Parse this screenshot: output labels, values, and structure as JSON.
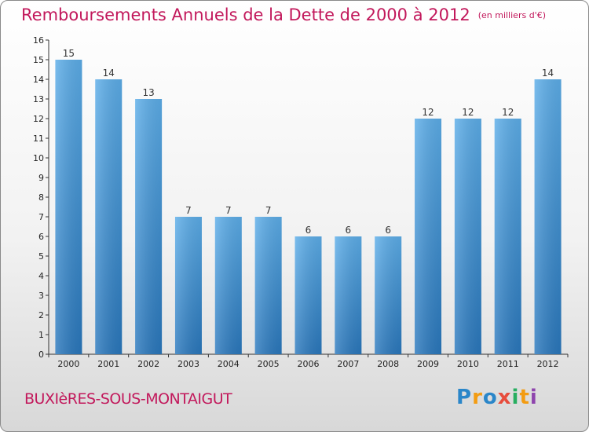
{
  "header": {
    "title": "Remboursements Annuels de la Dette de 2000 à 2012",
    "unit": "(en milliers d'€)"
  },
  "footer": {
    "city": "BUXIèRES-SOUS-MONTAIGUT",
    "logo": "Proxiti"
  },
  "chart_data": {
    "type": "bar",
    "title": "Remboursements Annuels de la Dette de 2000 à 2012",
    "subtitle": "(en milliers d'€)",
    "xlabel": "",
    "ylabel": "",
    "categories": [
      "2000",
      "2001",
      "2002",
      "2003",
      "2004",
      "2005",
      "2006",
      "2007",
      "2008",
      "2009",
      "2010",
      "2011",
      "2012"
    ],
    "values": [
      15,
      14,
      13,
      7,
      7,
      7,
      6,
      6,
      6,
      12,
      12,
      12,
      14
    ],
    "ylim": [
      0,
      16
    ],
    "yticks": [
      0,
      1,
      2,
      3,
      4,
      5,
      6,
      7,
      8,
      9,
      10,
      11,
      12,
      13,
      14,
      15,
      16
    ],
    "grid": false,
    "bar_color": "#4a9ee0"
  }
}
